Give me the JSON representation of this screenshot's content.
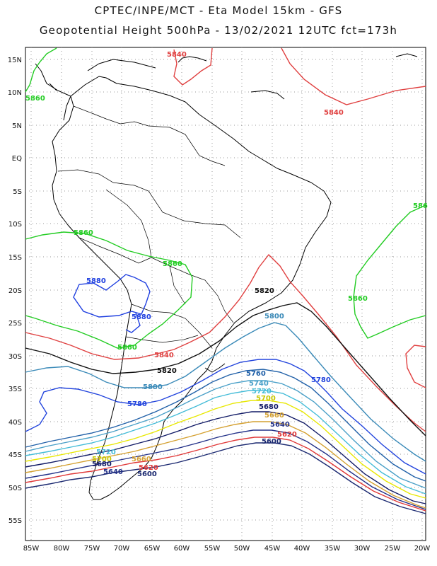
{
  "header": {
    "line1": "CPTEC/INPE/MCT -  Eta Model 15km - GFS",
    "line2": "Geopotential Height 500hPa - 13/02/2021 12UTC fct=173h"
  },
  "map": {
    "lat_labels": [
      "15N",
      "10N",
      "5N",
      "EQ",
      "5S",
      "10S",
      "15S",
      "20S",
      "25S",
      "30S",
      "35S",
      "40S",
      "45S",
      "50S",
      "55S"
    ],
    "lon_labels": [
      "85W",
      "80W",
      "75W",
      "70W",
      "65W",
      "60W",
      "55W",
      "50W",
      "45W",
      "40W",
      "35W",
      "30W",
      "25W",
      "20W"
    ]
  },
  "contours": {
    "labels": [
      "5840",
      "5840",
      "5860",
      "5860",
      "5860",
      "5880",
      "5880",
      "5860",
      "5840",
      "5820",
      "5820",
      "5800",
      "5800",
      "5780",
      "5760",
      "5740",
      "5720",
      "5700",
      "5680",
      "5660",
      "5640",
      "5620",
      "5600",
      "5780",
      "5720",
      "5700",
      "5680",
      "5660",
      "5640",
      "5620",
      "5600",
      "586",
      "5860"
    ]
  },
  "colors": {
    "c5880": "#2040e0",
    "c5860": "#22cc22",
    "c5840": "#e04040",
    "c5820": "#111111",
    "c5800": "#3a8ab8",
    "c5780": "#2244dd",
    "c5760": "#2060a8",
    "c5740": "#4aa0c8",
    "c5720": "#44bcd8",
    "c5700": "#e8e800",
    "c5680": "#111a66",
    "c5660": "#d4a030",
    "c5640": "#223088",
    "c5620": "#e03838",
    "c5600": "#1a2870"
  }
}
